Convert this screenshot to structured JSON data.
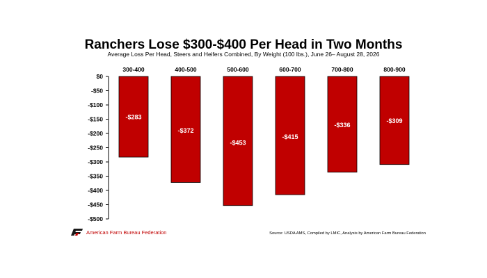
{
  "chart_data": {
    "type": "bar",
    "title": "Ranchers Lose $300-$400 Per Head in Two Months",
    "subtitle": "Average Loss Per Head, Steers and Heifers Combined, By Weight (100 lbs.), June 26– August 28, 2026",
    "categories": [
      "300-400",
      "400-500",
      "500-600",
      "600-700",
      "700-800",
      "800-900"
    ],
    "values": [
      -283,
      -372,
      -453,
      -415,
      -336,
      -309
    ],
    "data_labels": [
      "-$283",
      "-$372",
      "-$453",
      "-$415",
      "-$336",
      "-$309"
    ],
    "ylim": [
      -500,
      0
    ],
    "yticks": [
      0,
      -50,
      -100,
      -150,
      -200,
      -250,
      -300,
      -350,
      -400,
      -450,
      -500
    ],
    "ytick_labels": [
      "$0",
      "-$50",
      "-$100",
      "-$150",
      "-$200",
      "-$250",
      "-$300",
      "-$350",
      "-$400",
      "-$450",
      "-$500"
    ],
    "xlabel": "",
    "ylabel": "",
    "category_labels_position": "top",
    "grid": false,
    "bar_color": "#c00000"
  },
  "footer": {
    "logo_text": "American Farm Bureau Federation",
    "source": "Source: USDA AMS, Compiled by LMIC, Analysis by American Farm Bureau Federation"
  }
}
